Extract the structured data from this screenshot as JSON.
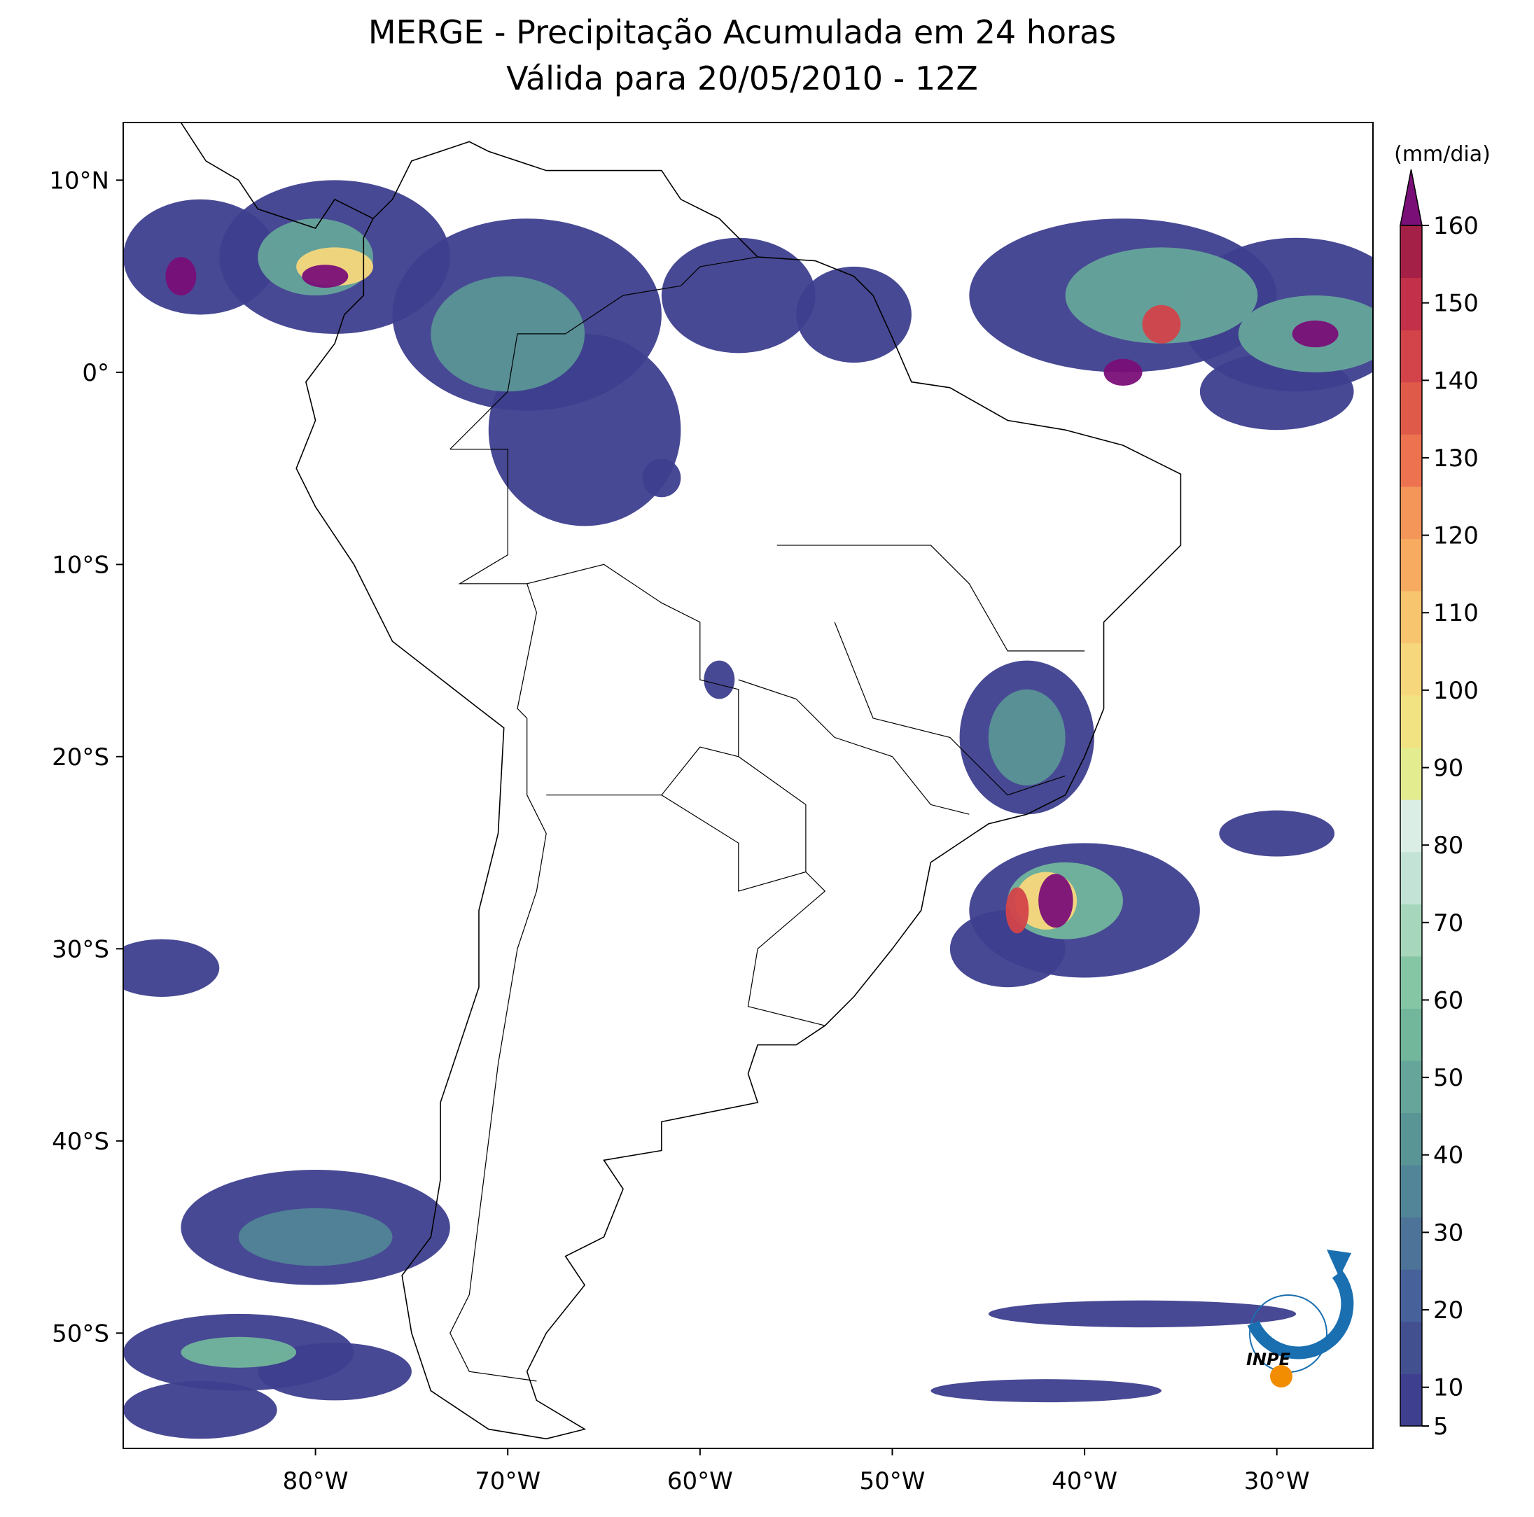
{
  "chart_data": {
    "type": "map",
    "title": "MERGE - Precipitação Acumulada em 24 horas",
    "subtitle": "Válida para 20/05/2010 - 12Z",
    "xlim": [
      -90,
      -25
    ],
    "ylim": [
      -56,
      13
    ],
    "xticks": [
      {
        "value": -80,
        "label": "80°W"
      },
      {
        "value": -70,
        "label": "70°W"
      },
      {
        "value": -60,
        "label": "60°W"
      },
      {
        "value": -50,
        "label": "50°W"
      },
      {
        "value": -40,
        "label": "40°W"
      },
      {
        "value": -30,
        "label": "30°W"
      }
    ],
    "yticks": [
      {
        "value": 10,
        "label": "10°N"
      },
      {
        "value": 0,
        "label": "0°"
      },
      {
        "value": -10,
        "label": "10°S"
      },
      {
        "value": -20,
        "label": "20°S"
      },
      {
        "value": -30,
        "label": "30°S"
      },
      {
        "value": -40,
        "label": "40°S"
      },
      {
        "value": -50,
        "label": "50°S"
      }
    ],
    "colorbar": {
      "label": "(mm/dia)",
      "lim": [
        5,
        160
      ],
      "ticks": [
        5,
        10,
        20,
        30,
        40,
        50,
        60,
        70,
        80,
        90,
        100,
        110,
        120,
        130,
        140,
        150,
        160
      ],
      "colors": [
        "#3e3f8e",
        "#43508f",
        "#47619a",
        "#4e7398",
        "#518597",
        "#5a9596",
        "#66a59a",
        "#72b69c",
        "#85c6a4",
        "#a6d6bb",
        "#c2e3d6",
        "#dbeee6",
        "#e4ec90",
        "#f2e382",
        "#f7d77c",
        "#f8c56f",
        "#f6ab60",
        "#f4955a",
        "#ec7250",
        "#e05a4a",
        "#d3434a",
        "#c23049",
        "#a52047"
      ],
      "extend_color": "#7a0f78"
    },
    "logo_text": "INPE"
  }
}
